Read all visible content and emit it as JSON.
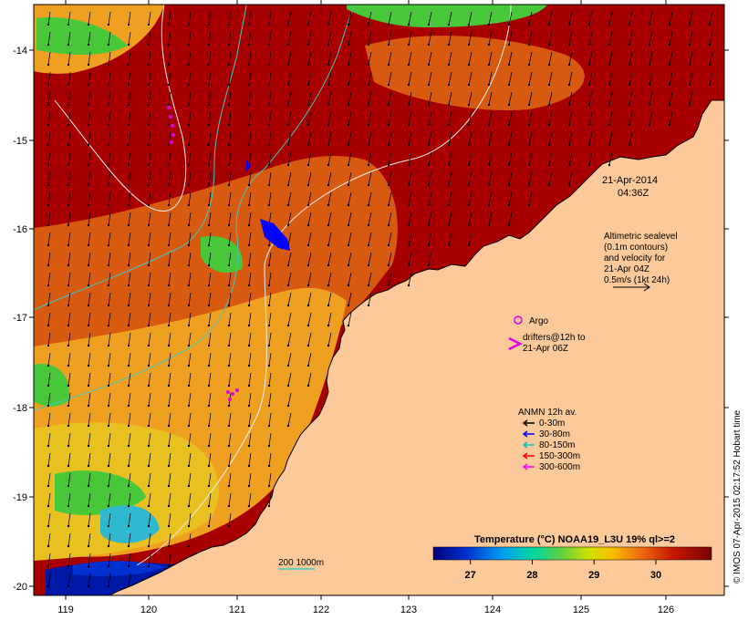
{
  "map": {
    "timestamp": {
      "date": "21-Apr-2014",
      "time": "04:36Z"
    },
    "x_ticks": [
      "119",
      "120",
      "121",
      "122",
      "123",
      "124",
      "125",
      "126"
    ],
    "y_ticks": [
      "-14",
      "-15",
      "-16",
      "-17",
      "-18",
      "-19",
      "-20"
    ],
    "altimetry_note": [
      "Altimetric sealevel",
      "(0.1m contours)",
      "and velocity for",
      "21-Apr 04Z",
      "0.5m/s (1kt 24h)"
    ],
    "argo_label": "Argo",
    "drifters_label": [
      "drifters@12h to",
      "21-Apr 06Z"
    ],
    "anmn_title": "ANMN 12h av.",
    "anmn_legend": [
      {
        "label": "0-30m",
        "color": "#000000"
      },
      {
        "label": "30-80m",
        "color": "#0000ff"
      },
      {
        "label": "80-150m",
        "color": "#00c8c8"
      },
      {
        "label": "150-300m",
        "color": "#ff0000"
      },
      {
        "label": "300-600m",
        "color": "#ff00ff"
      }
    ],
    "depth_contour_label": "200  1000m",
    "colorbar": {
      "title": "Temperature (°C) NOAA19_L3U 19% ql>=2",
      "ticks": [
        "27",
        "28",
        "29",
        "30"
      ],
      "range": [
        26.4,
        30.9
      ]
    },
    "credit": "© IMOS 07-Apr-2015 02:17:52 Hobart time",
    "colors": {
      "land": "#fcc99a",
      "sst_hot": "#a80000",
      "sst_warm": "#e06010",
      "sst_mid": "#f0b800",
      "sst_cool": "#38c830",
      "sst_cold": "#0010a0",
      "argo": "#e000e0"
    }
  }
}
